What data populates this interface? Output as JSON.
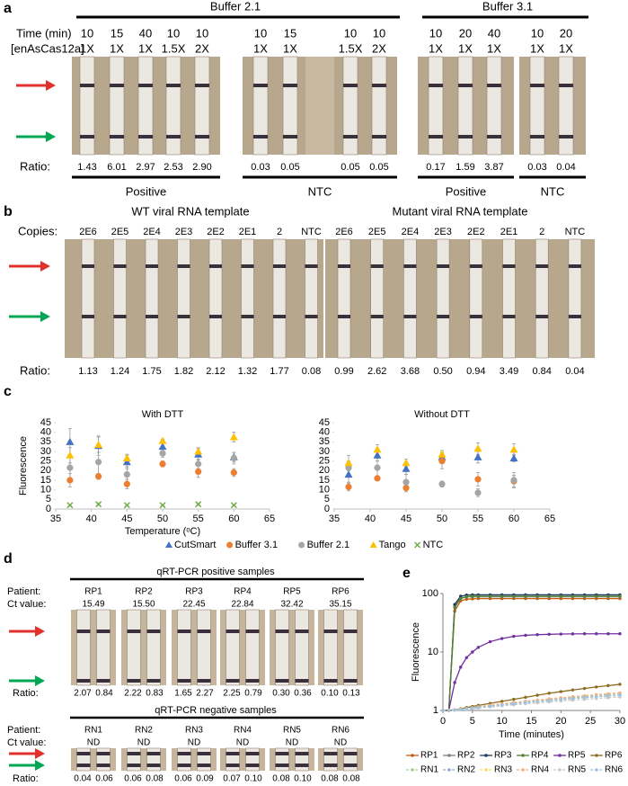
{
  "panel_a": {
    "letter": "a",
    "buffers": [
      "Buffer 2.1",
      "Buffer 3.1"
    ],
    "time_label": "Time (min)",
    "conc_label": "[enAsCas12a]",
    "ratio_label": "Ratio:",
    "lanes": [
      {
        "time": 10,
        "conc": "1X",
        "ratio": "1.43"
      },
      {
        "time": 15,
        "conc": "1X",
        "ratio": "6.01"
      },
      {
        "time": 40,
        "conc": "1X",
        "ratio": "2.97"
      },
      {
        "time": 10,
        "conc": "1.5X",
        "ratio": "2.53"
      },
      {
        "time": 10,
        "conc": "2X",
        "ratio": "2.90"
      },
      {
        "time": 10,
        "conc": "1X",
        "ratio": "0.03"
      },
      {
        "time": 15,
        "conc": "1X",
        "ratio": "0.05"
      },
      {
        "time": 10,
        "conc": "1.5X",
        "ratio": "0.05"
      },
      {
        "time": 10,
        "conc": "2X",
        "ratio": "0.05"
      },
      {
        "time": 10,
        "conc": "1X",
        "ratio": "0.17"
      },
      {
        "time": 20,
        "conc": "1X",
        "ratio": "1.59"
      },
      {
        "time": 40,
        "conc": "1X",
        "ratio": "3.87"
      },
      {
        "time": 10,
        "conc": "1X",
        "ratio": "0.03"
      },
      {
        "time": 20,
        "conc": "1X",
        "ratio": "0.04"
      }
    ],
    "groups": [
      "Positive",
      "NTC",
      "Positive",
      "NTC"
    ]
  },
  "panel_b": {
    "letter": "b",
    "copies_label": "Copies:",
    "ratio_label": "Ratio:",
    "templates": [
      {
        "title": "WT viral RNA template",
        "copies": [
          "2E6",
          "2E5",
          "2E4",
          "2E3",
          "2E2",
          "2E1",
          "2",
          "NTC"
        ],
        "ratios": [
          "1.13",
          "1.24",
          "1.75",
          "1.82",
          "2.12",
          "1.32",
          "1.77",
          "0.08"
        ]
      },
      {
        "title": "Mutant viral RNA template",
        "copies": [
          "2E6",
          "2E5",
          "2E4",
          "2E3",
          "2E2",
          "2E1",
          "2",
          "NTC"
        ],
        "ratios": [
          "0.99",
          "2.62",
          "3.68",
          "0.50",
          "0.94",
          "3.49",
          "0.84",
          "0.04"
        ]
      }
    ]
  },
  "panel_c": {
    "letter": "c"
  },
  "panel_d": {
    "letter": "d",
    "patient_label": "Patient:",
    "ct_label": "Ct value:",
    "ratio_label": "Ratio:",
    "groups": [
      {
        "title": "qRT-PCR positive samples",
        "patients": [
          {
            "id": "RP1",
            "ct": "15.49",
            "ratios": [
              "2.07",
              "0.84"
            ]
          },
          {
            "id": "RP2",
            "ct": "15.50",
            "ratios": [
              "2.22",
              "0.83"
            ]
          },
          {
            "id": "RP3",
            "ct": "22.45",
            "ratios": [
              "1.65",
              "2.27"
            ]
          },
          {
            "id": "RP4",
            "ct": "22.84",
            "ratios": [
              "2.25",
              "0.79"
            ]
          },
          {
            "id": "RP5",
            "ct": "32.42",
            "ratios": [
              "0.30",
              "0.36"
            ]
          },
          {
            "id": "RP6",
            "ct": "35.15",
            "ratios": [
              "0.10",
              "0.13"
            ]
          }
        ]
      },
      {
        "title": "qRT-PCR negative samples",
        "patients": [
          {
            "id": "RN1",
            "ct": "ND",
            "ratios": [
              "0.04",
              "0.06"
            ]
          },
          {
            "id": "RN2",
            "ct": "ND",
            "ratios": [
              "0.06",
              "0.08"
            ]
          },
          {
            "id": "RN3",
            "ct": "ND",
            "ratios": [
              "0.06",
              "0.09"
            ]
          },
          {
            "id": "RN4",
            "ct": "ND",
            "ratios": [
              "0.07",
              "0.10"
            ]
          },
          {
            "id": "RN5",
            "ct": "ND",
            "ratios": [
              "0.08",
              "0.10"
            ]
          },
          {
            "id": "RN6",
            "ct": "ND",
            "ratios": [
              "0.08",
              "0.08"
            ]
          }
        ]
      }
    ]
  },
  "panel_e": {
    "letter": "e"
  },
  "chart_data": [
    {
      "type": "scatter",
      "title": "With DTT",
      "x_label": "Temperature (ᵒC)",
      "y_label": "Fluorescence",
      "xlim": [
        35,
        65
      ],
      "xticks": [
        35,
        40,
        45,
        50,
        55,
        60,
        65
      ],
      "ylim": [
        0,
        45
      ],
      "yticks": [
        0,
        5,
        10,
        15,
        20,
        25,
        30,
        35,
        40,
        45
      ],
      "x": [
        37,
        41,
        45,
        50,
        55,
        60
      ],
      "series": [
        {
          "name": "CutSmart",
          "color": "#4472c4",
          "marker": "triangle",
          "values": [
            35,
            33,
            24.5,
            32.5,
            28.5,
            27
          ],
          "errors": [
            7,
            5,
            3.5,
            3,
            3,
            2.5
          ]
        },
        {
          "name": "Buffer 3.1",
          "color": "#ed7d31",
          "marker": "circle",
          "values": [
            15,
            17,
            13,
            23.5,
            19.5,
            19
          ],
          "errors": [
            3.5,
            1.5,
            2.5,
            1.5,
            3,
            2
          ]
        },
        {
          "name": "Buffer 2.1",
          "color": "#a5a5a5",
          "marker": "circle",
          "values": [
            21.5,
            24.5,
            18,
            29,
            23.5,
            26.5
          ],
          "errors": [
            6,
            7,
            4,
            2,
            2.5,
            3
          ]
        },
        {
          "name": "Tango",
          "color": "#ffc000",
          "marker": "triangle",
          "values": [
            28,
            33.5,
            26.5,
            35.5,
            30,
            37.5
          ],
          "errors": [
            4,
            4,
            2,
            1,
            2,
            2.5
          ]
        },
        {
          "name": "NTC",
          "color": "#70ad47",
          "marker": "x",
          "values": [
            2,
            2.5,
            2,
            2,
            2.5,
            2
          ],
          "errors": [
            0.4,
            0.4,
            0.3,
            0.3,
            0.4,
            0.3
          ]
        }
      ]
    },
    {
      "type": "scatter",
      "title": "Without DTT",
      "xlim": [
        35,
        65
      ],
      "xticks": [
        35,
        40,
        45,
        50,
        55,
        60,
        65
      ],
      "ylim": [
        0,
        45
      ],
      "yticks": [
        0,
        5,
        10,
        15,
        20,
        25,
        30,
        35,
        40,
        45
      ],
      "x": [
        37,
        41,
        45,
        50,
        55,
        60
      ],
      "series": [
        {
          "color": "#4472c4",
          "marker": "triangle",
          "values": [
            18,
            28,
            21,
            27,
            27,
            26.5
          ],
          "errors": [
            4,
            3,
            3,
            2.5,
            3,
            2
          ]
        },
        {
          "color": "#ed7d31",
          "marker": "circle",
          "values": [
            11.5,
            16,
            11,
            25,
            15.5,
            14.5
          ],
          "errors": [
            2,
            0.5,
            2,
            4,
            3.5,
            3
          ]
        },
        {
          "color": "#a5a5a5",
          "marker": "circle",
          "values": [
            21.5,
            21.5,
            14,
            13,
            8.5,
            15
          ],
          "errors": [
            3.5,
            5,
            4,
            1.5,
            2,
            4
          ]
        },
        {
          "color": "#ffc000",
          "marker": "triangle",
          "values": [
            24,
            31,
            24,
            28.5,
            31.5,
            31
          ],
          "errors": [
            4,
            2.5,
            2,
            2,
            3,
            3
          ]
        }
      ]
    },
    {
      "type": "line",
      "x_label": "Time (minutes)",
      "y_label": "Fluorescence",
      "log_y": true,
      "xlim": [
        0,
        30
      ],
      "xticks": [
        0,
        5,
        10,
        15,
        20,
        25,
        30
      ],
      "ylim": [
        1,
        100
      ],
      "yticks": [
        1,
        10,
        100
      ],
      "x": [
        0,
        1,
        2,
        3,
        4,
        5,
        6,
        8,
        10,
        12,
        14,
        16,
        18,
        20,
        22,
        24,
        26,
        28,
        30
      ],
      "series": [
        {
          "name": "RP1",
          "color": "#c55a11",
          "dashed": false,
          "values": [
            1,
            1,
            50,
            75,
            80,
            81,
            82,
            82,
            82,
            82,
            82,
            82,
            82,
            82,
            82,
            82,
            82,
            82,
            82
          ]
        },
        {
          "name": "RP2",
          "color": "#7f7f7f",
          "dashed": false,
          "values": [
            1,
            1,
            60,
            84,
            88,
            88,
            88,
            88,
            88,
            88,
            88,
            88,
            88,
            88,
            88,
            88,
            88,
            88,
            88
          ]
        },
        {
          "name": "RP3",
          "color": "#203864",
          "dashed": false,
          "values": [
            1,
            1,
            65,
            90,
            94,
            95,
            95,
            95,
            95,
            95,
            95,
            95,
            95,
            95,
            95,
            95,
            95,
            95,
            95
          ]
        },
        {
          "name": "RP4",
          "color": "#548235",
          "dashed": false,
          "values": [
            1,
            1,
            58,
            82,
            88,
            90,
            90,
            90,
            90,
            90,
            90,
            90,
            90,
            90,
            90,
            90,
            90,
            90,
            90
          ]
        },
        {
          "name": "RP5",
          "color": "#7030a0",
          "dashed": false,
          "values": [
            1,
            1,
            3,
            5.5,
            8,
            10,
            12,
            15,
            17,
            18.5,
            19.3,
            19.8,
            20.1,
            20.3,
            20.4,
            20.5,
            20.5,
            20.5,
            20.5
          ]
        },
        {
          "name": "RP6",
          "color": "#8c6d1f",
          "dashed": false,
          "values": [
            1,
            1,
            1.03,
            1.07,
            1.12,
            1.17,
            1.22,
            1.32,
            1.43,
            1.55,
            1.68,
            1.82,
            1.97,
            2.1,
            2.24,
            2.38,
            2.52,
            2.66,
            2.8
          ]
        },
        {
          "name": "RN1",
          "color": "#a9d18e",
          "dashed": true,
          "values": [
            1,
            1,
            1.02,
            1.05,
            1.08,
            1.11,
            1.14,
            1.2,
            1.26,
            1.33,
            1.4,
            1.47,
            1.54,
            1.61,
            1.68,
            1.75,
            1.82,
            1.89,
            1.96
          ]
        },
        {
          "name": "RN2",
          "color": "#8faadc",
          "dashed": true,
          "values": [
            1,
            1,
            1.02,
            1.04,
            1.07,
            1.1,
            1.13,
            1.19,
            1.25,
            1.31,
            1.37,
            1.43,
            1.49,
            1.55,
            1.61,
            1.67,
            1.73,
            1.79,
            1.85
          ]
        },
        {
          "name": "RN3",
          "color": "#ffd966",
          "dashed": true,
          "values": [
            1,
            1,
            1.02,
            1.04,
            1.06,
            1.09,
            1.12,
            1.17,
            1.23,
            1.29,
            1.35,
            1.41,
            1.47,
            1.53,
            1.59,
            1.65,
            1.71,
            1.76,
            1.82
          ]
        },
        {
          "name": "RN4",
          "color": "#f4b183",
          "dashed": true,
          "values": [
            1,
            1,
            1.02,
            1.05,
            1.08,
            1.12,
            1.16,
            1.23,
            1.3,
            1.37,
            1.44,
            1.51,
            1.58,
            1.65,
            1.72,
            1.79,
            1.86,
            1.93,
            2.0
          ]
        },
        {
          "name": "RN5",
          "color": "#c9c9c9",
          "dashed": true,
          "values": [
            1,
            1,
            1.01,
            1.03,
            1.05,
            1.07,
            1.1,
            1.15,
            1.2,
            1.25,
            1.3,
            1.35,
            1.4,
            1.45,
            1.5,
            1.55,
            1.6,
            1.65,
            1.7
          ]
        },
        {
          "name": "RN6",
          "color": "#9dc3e6",
          "dashed": true,
          "values": [
            1,
            1,
            1.02,
            1.04,
            1.07,
            1.1,
            1.13,
            1.18,
            1.24,
            1.3,
            1.36,
            1.42,
            1.48,
            1.54,
            1.6,
            1.66,
            1.72,
            1.78,
            1.84
          ]
        }
      ]
    }
  ]
}
